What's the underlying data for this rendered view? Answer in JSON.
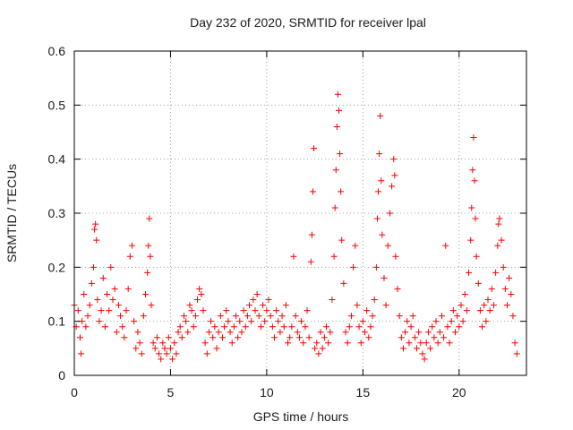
{
  "chart_data": {
    "type": "scatter",
    "title": "Day 232 of 2020, SRMTID for receiver lpal",
    "xlabel": "GPS time / hours",
    "ylabel": "SRMTID / TECUs",
    "xlim": [
      0,
      23.5
    ],
    "ylim": [
      0,
      0.6
    ],
    "xticks": [
      0,
      5,
      10,
      15,
      20
    ],
    "xtick_labels": [
      "0",
      "5",
      "10",
      "15",
      "20"
    ],
    "yticks": [
      0,
      0.1,
      0.2,
      0.3,
      0.4,
      0.5,
      0.6
    ],
    "ytick_labels": [
      "0",
      "0.1",
      "0.2",
      "0.3",
      "0.4",
      "0.5",
      "0.6"
    ],
    "grid": true,
    "marker": "+",
    "marker_color": "#ff0000",
    "series": [
      {
        "name": "SRMTID",
        "points": [
          [
            0.0,
            0.13
          ],
          [
            0.1,
            0.09
          ],
          [
            0.2,
            0.12
          ],
          [
            0.3,
            0.07
          ],
          [
            0.35,
            0.04
          ],
          [
            0.4,
            0.1
          ],
          [
            0.5,
            0.15
          ],
          [
            0.6,
            0.09
          ],
          [
            0.7,
            0.11
          ],
          [
            0.8,
            0.13
          ],
          [
            0.9,
            0.17
          ],
          [
            1.0,
            0.2
          ],
          [
            1.05,
            0.27
          ],
          [
            1.1,
            0.28
          ],
          [
            1.15,
            0.25
          ],
          [
            1.2,
            0.14
          ],
          [
            1.3,
            0.1
          ],
          [
            1.4,
            0.12
          ],
          [
            1.5,
            0.18
          ],
          [
            1.6,
            0.09
          ],
          [
            1.7,
            0.15
          ],
          [
            1.8,
            0.12
          ],
          [
            1.9,
            0.2
          ],
          [
            2.0,
            0.14
          ],
          [
            2.1,
            0.16
          ],
          [
            2.2,
            0.08
          ],
          [
            2.3,
            0.13
          ],
          [
            2.4,
            0.11
          ],
          [
            2.5,
            0.09
          ],
          [
            2.6,
            0.07
          ],
          [
            2.7,
            0.12
          ],
          [
            2.8,
            0.16
          ],
          [
            2.9,
            0.22
          ],
          [
            3.0,
            0.24
          ],
          [
            3.1,
            0.1
          ],
          [
            3.2,
            0.05
          ],
          [
            3.3,
            0.08
          ],
          [
            3.4,
            0.06
          ],
          [
            3.5,
            0.04
          ],
          [
            3.6,
            0.11
          ],
          [
            3.7,
            0.15
          ],
          [
            3.8,
            0.19
          ],
          [
            3.85,
            0.24
          ],
          [
            3.9,
            0.29
          ],
          [
            3.95,
            0.22
          ],
          [
            4.0,
            0.13
          ],
          [
            4.1,
            0.06
          ],
          [
            4.2,
            0.05
          ],
          [
            4.3,
            0.07
          ],
          [
            4.4,
            0.04
          ],
          [
            4.5,
            0.03
          ],
          [
            4.6,
            0.06
          ],
          [
            4.7,
            0.05
          ],
          [
            4.8,
            0.04
          ],
          [
            4.9,
            0.07
          ],
          [
            5.0,
            0.05
          ],
          [
            5.1,
            0.03
          ],
          [
            5.2,
            0.06
          ],
          [
            5.3,
            0.04
          ],
          [
            5.4,
            0.08
          ],
          [
            5.5,
            0.09
          ],
          [
            5.6,
            0.07
          ],
          [
            5.7,
            0.11
          ],
          [
            5.8,
            0.1
          ],
          [
            5.9,
            0.08
          ],
          [
            6.0,
            0.13
          ],
          [
            6.1,
            0.12
          ],
          [
            6.2,
            0.09
          ],
          [
            6.3,
            0.11
          ],
          [
            6.4,
            0.14
          ],
          [
            6.5,
            0.16
          ],
          [
            6.6,
            0.15
          ],
          [
            6.7,
            0.12
          ],
          [
            6.8,
            0.06
          ],
          [
            6.9,
            0.04
          ],
          [
            7.0,
            0.08
          ],
          [
            7.1,
            0.1
          ],
          [
            7.2,
            0.07
          ],
          [
            7.3,
            0.09
          ],
          [
            7.4,
            0.05
          ],
          [
            7.5,
            0.08
          ],
          [
            7.6,
            0.11
          ],
          [
            7.7,
            0.07
          ],
          [
            7.8,
            0.09
          ],
          [
            7.9,
            0.12
          ],
          [
            8.0,
            0.1
          ],
          [
            8.1,
            0.08
          ],
          [
            8.2,
            0.06
          ],
          [
            8.3,
            0.09
          ],
          [
            8.4,
            0.11
          ],
          [
            8.5,
            0.07
          ],
          [
            8.6,
            0.1
          ],
          [
            8.7,
            0.08
          ],
          [
            8.8,
            0.12
          ],
          [
            8.9,
            0.09
          ],
          [
            9.0,
            0.11
          ],
          [
            9.1,
            0.13
          ],
          [
            9.2,
            0.1
          ],
          [
            9.3,
            0.14
          ],
          [
            9.4,
            0.12
          ],
          [
            9.5,
            0.15
          ],
          [
            9.6,
            0.11
          ],
          [
            9.7,
            0.09
          ],
          [
            9.8,
            0.13
          ],
          [
            9.9,
            0.1
          ],
          [
            10.0,
            0.12
          ],
          [
            10.1,
            0.14
          ],
          [
            10.2,
            0.11
          ],
          [
            10.3,
            0.09
          ],
          [
            10.4,
            0.07
          ],
          [
            10.5,
            0.12
          ],
          [
            10.6,
            0.1
          ],
          [
            10.7,
            0.08
          ],
          [
            10.8,
            0.11
          ],
          [
            10.9,
            0.09
          ],
          [
            11.0,
            0.13
          ],
          [
            11.1,
            0.06
          ],
          [
            11.2,
            0.07
          ],
          [
            11.3,
            0.09
          ],
          [
            11.4,
            0.22
          ],
          [
            11.5,
            0.11
          ],
          [
            11.6,
            0.08
          ],
          [
            11.7,
            0.07
          ],
          [
            11.8,
            0.1
          ],
          [
            11.9,
            0.06
          ],
          [
            12.0,
            0.09
          ],
          [
            12.1,
            0.12
          ],
          [
            12.2,
            0.07
          ],
          [
            12.3,
            0.21
          ],
          [
            12.35,
            0.26
          ],
          [
            12.4,
            0.34
          ],
          [
            12.45,
            0.42
          ],
          [
            12.5,
            0.05
          ],
          [
            12.6,
            0.06
          ],
          [
            12.7,
            0.04
          ],
          [
            12.8,
            0.08
          ],
          [
            12.9,
            0.05
          ],
          [
            13.0,
            0.07
          ],
          [
            13.1,
            0.09
          ],
          [
            13.2,
            0.06
          ],
          [
            13.3,
            0.08
          ],
          [
            13.4,
            0.14
          ],
          [
            13.5,
            0.22
          ],
          [
            13.55,
            0.31
          ],
          [
            13.6,
            0.38
          ],
          [
            13.65,
            0.46
          ],
          [
            13.7,
            0.52
          ],
          [
            13.75,
            0.49
          ],
          [
            13.8,
            0.41
          ],
          [
            13.85,
            0.34
          ],
          [
            13.9,
            0.25
          ],
          [
            14.0,
            0.17
          ],
          [
            14.1,
            0.08
          ],
          [
            14.2,
            0.06
          ],
          [
            14.3,
            0.09
          ],
          [
            14.4,
            0.11
          ],
          [
            14.5,
            0.2
          ],
          [
            14.6,
            0.24
          ],
          [
            14.7,
            0.13
          ],
          [
            14.8,
            0.09
          ],
          [
            14.9,
            0.06
          ],
          [
            15.0,
            0.1
          ],
          [
            15.1,
            0.08
          ],
          [
            15.2,
            0.12
          ],
          [
            15.3,
            0.07
          ],
          [
            15.4,
            0.09
          ],
          [
            15.5,
            0.11
          ],
          [
            15.6,
            0.14
          ],
          [
            15.7,
            0.2
          ],
          [
            15.75,
            0.29
          ],
          [
            15.8,
            0.34
          ],
          [
            15.85,
            0.41
          ],
          [
            15.9,
            0.48
          ],
          [
            15.95,
            0.36
          ],
          [
            16.0,
            0.26
          ],
          [
            16.1,
            0.18
          ],
          [
            16.2,
            0.13
          ],
          [
            16.3,
            0.24
          ],
          [
            16.4,
            0.3
          ],
          [
            16.5,
            0.35
          ],
          [
            16.6,
            0.4
          ],
          [
            16.65,
            0.37
          ],
          [
            16.7,
            0.22
          ],
          [
            16.8,
            0.16
          ],
          [
            16.9,
            0.11
          ],
          [
            17.0,
            0.07
          ],
          [
            17.1,
            0.05
          ],
          [
            17.2,
            0.08
          ],
          [
            17.3,
            0.1
          ],
          [
            17.4,
            0.06
          ],
          [
            17.5,
            0.09
          ],
          [
            17.6,
            0.11
          ],
          [
            17.7,
            0.07
          ],
          [
            17.8,
            0.05
          ],
          [
            17.9,
            0.08
          ],
          [
            18.0,
            0.06
          ],
          [
            18.1,
            0.04
          ],
          [
            18.2,
            0.03
          ],
          [
            18.3,
            0.06
          ],
          [
            18.4,
            0.08
          ],
          [
            18.5,
            0.05
          ],
          [
            18.6,
            0.09
          ],
          [
            18.7,
            0.07
          ],
          [
            18.8,
            0.1
          ],
          [
            18.9,
            0.06
          ],
          [
            19.0,
            0.08
          ],
          [
            19.1,
            0.11
          ],
          [
            19.2,
            0.07
          ],
          [
            19.3,
            0.24
          ],
          [
            19.4,
            0.09
          ],
          [
            19.5,
            0.06
          ],
          [
            19.6,
            0.1
          ],
          [
            19.7,
            0.12
          ],
          [
            19.8,
            0.08
          ],
          [
            19.9,
            0.11
          ],
          [
            20.0,
            0.09
          ],
          [
            20.1,
            0.13
          ],
          [
            20.2,
            0.1
          ],
          [
            20.3,
            0.15
          ],
          [
            20.4,
            0.12
          ],
          [
            20.5,
            0.19
          ],
          [
            20.6,
            0.25
          ],
          [
            20.65,
            0.31
          ],
          [
            20.7,
            0.38
          ],
          [
            20.75,
            0.44
          ],
          [
            20.8,
            0.36
          ],
          [
            20.85,
            0.29
          ],
          [
            20.9,
            0.22
          ],
          [
            21.0,
            0.17
          ],
          [
            21.1,
            0.12
          ],
          [
            21.2,
            0.09
          ],
          [
            21.3,
            0.13
          ],
          [
            21.4,
            0.1
          ],
          [
            21.5,
            0.14
          ],
          [
            21.6,
            0.12
          ],
          [
            21.7,
            0.16
          ],
          [
            21.8,
            0.13
          ],
          [
            21.9,
            0.19
          ],
          [
            22.0,
            0.24
          ],
          [
            22.05,
            0.28
          ],
          [
            22.1,
            0.29
          ],
          [
            22.2,
            0.25
          ],
          [
            22.3,
            0.2
          ],
          [
            22.4,
            0.16
          ],
          [
            22.5,
            0.13
          ],
          [
            22.6,
            0.18
          ],
          [
            22.7,
            0.15
          ],
          [
            22.8,
            0.11
          ],
          [
            22.9,
            0.06
          ],
          [
            23.0,
            0.04
          ]
        ]
      }
    ]
  }
}
